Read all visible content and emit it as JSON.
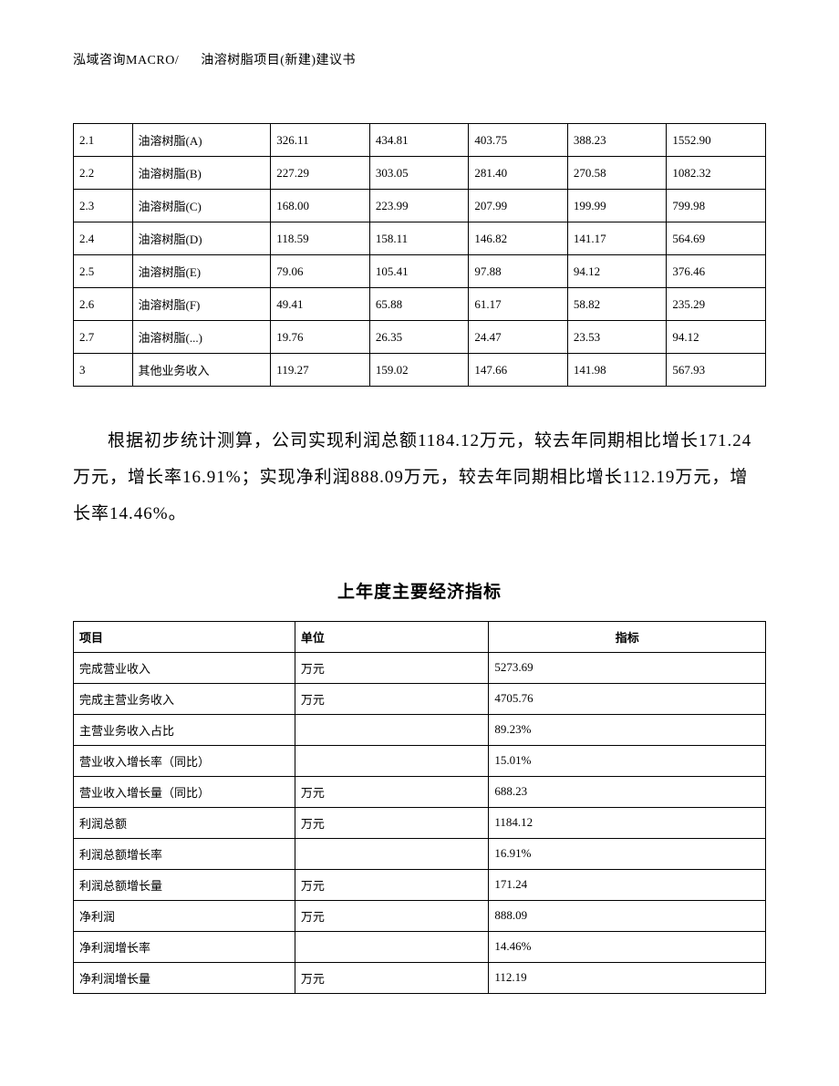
{
  "header": {
    "left": "泓域咨询MACRO/",
    "right": "油溶树脂项目(新建)建议书"
  },
  "top_table": {
    "col_widths_pct": [
      8.5,
      20,
      14.3,
      14.3,
      14.3,
      14.3,
      14.3
    ],
    "border_color": "#000000",
    "font_size": 13,
    "rows": [
      [
        "2.1",
        "油溶树脂(A)",
        "326.11",
        "434.81",
        "403.75",
        "388.23",
        "1552.90"
      ],
      [
        "2.2",
        "油溶树脂(B)",
        "227.29",
        "303.05",
        "281.40",
        "270.58",
        "1082.32"
      ],
      [
        "2.3",
        "油溶树脂(C)",
        "168.00",
        "223.99",
        "207.99",
        "199.99",
        "799.98"
      ],
      [
        "2.4",
        "油溶树脂(D)",
        "118.59",
        "158.11",
        "146.82",
        "141.17",
        "564.69"
      ],
      [
        "2.5",
        "油溶树脂(E)",
        "79.06",
        "105.41",
        "97.88",
        "94.12",
        "376.46"
      ],
      [
        "2.6",
        "油溶树脂(F)",
        "49.41",
        "65.88",
        "61.17",
        "58.82",
        "235.29"
      ],
      [
        "2.7",
        "油溶树脂(...)",
        "19.76",
        "26.35",
        "24.47",
        "23.53",
        "94.12"
      ],
      [
        "3",
        "其他业务收入",
        "119.27",
        "159.02",
        "147.66",
        "141.98",
        "567.93"
      ]
    ]
  },
  "paragraph": "根据初步统计测算，公司实现利润总额1184.12万元，较去年同期相比增长171.24万元，增长率16.91%；实现净利润888.09万元，较去年同期相比增长112.19万元，增长率14.46%。",
  "section_title": "上年度主要经济指标",
  "indicator_table": {
    "col_widths_pct": [
      32,
      28,
      40
    ],
    "border_color": "#000000",
    "font_size": 13,
    "header": [
      "项目",
      "单位",
      "指标"
    ],
    "rows": [
      [
        "完成营业收入",
        "万元",
        "5273.69"
      ],
      [
        "完成主营业务收入",
        "万元",
        "4705.76"
      ],
      [
        "主营业务收入占比",
        "",
        "89.23%"
      ],
      [
        "营业收入增长率（同比）",
        "",
        "15.01%"
      ],
      [
        "营业收入增长量（同比）",
        "万元",
        "688.23"
      ],
      [
        "利润总额",
        "万元",
        "1184.12"
      ],
      [
        "利润总额增长率",
        "",
        "16.91%"
      ],
      [
        "利润总额增长量",
        "万元",
        "171.24"
      ],
      [
        "净利润",
        "万元",
        "888.09"
      ],
      [
        "净利润增长率",
        "",
        "14.46%"
      ],
      [
        "净利润增长量",
        "万元",
        "112.19"
      ]
    ]
  },
  "styling": {
    "page_bg": "#ffffff",
    "text_color": "#000000",
    "body_font_size": 19,
    "body_line_height": 2.1,
    "title_font_size": 19,
    "title_font_weight": "bold",
    "header_font_size": 14
  }
}
